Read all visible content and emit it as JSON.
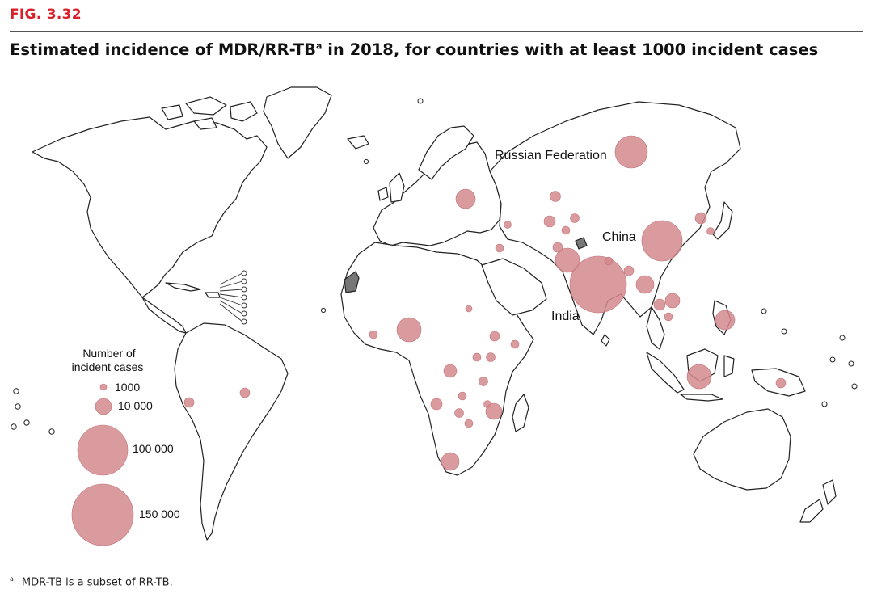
{
  "figure_label": "FIG. 3.32",
  "title_main": "Estimated incidence of MDR/RR-TB",
  "title_sup": "a",
  "title_rest": " in 2018, for countries with at least 1000 incident cases",
  "footnote_marker": "a",
  "footnote_text": "MDR-TB is a subset of RR-TB.",
  "legend": {
    "title_line1": "Number of",
    "title_line2": "incident cases",
    "items": [
      {
        "label": "1000",
        "value": 1000
      },
      {
        "label": "10 000",
        "value": 10000
      },
      {
        "label": "100 000",
        "value": 100000
      },
      {
        "label": "150 000",
        "value": 150000
      }
    ]
  },
  "country_labels": {
    "russia": "Russian Federation",
    "china": "China",
    "india": "India"
  },
  "colors": {
    "bubble_fill": "#d4898e",
    "land_stroke": "#222222",
    "not_applicable_fill": "#777777",
    "figure_label": "#d8202a"
  }
}
